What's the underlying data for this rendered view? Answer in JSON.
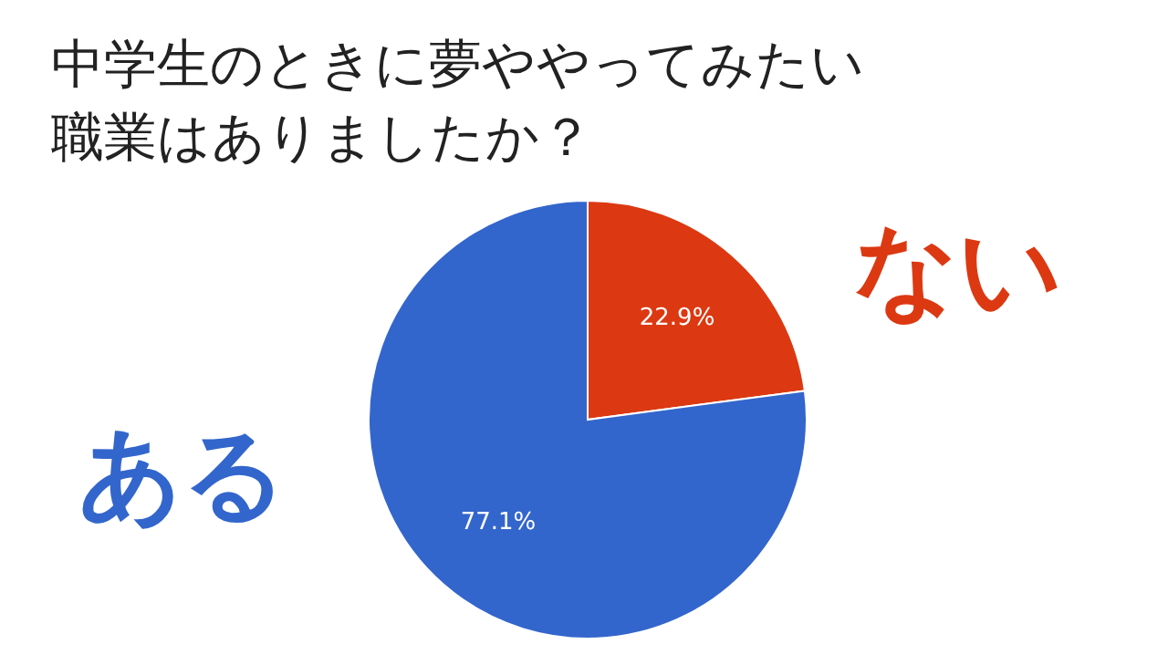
{
  "chart_data": {
    "type": "pie",
    "title": "中学生のときに夢ややってみたい職業はありましたか？",
    "categories": [
      "ない",
      "ある"
    ],
    "values": [
      22.9,
      77.1
    ],
    "colors": [
      "#dc3912",
      "#3366cc"
    ],
    "value_labels": [
      "22.9%",
      "77.1%"
    ]
  }
}
